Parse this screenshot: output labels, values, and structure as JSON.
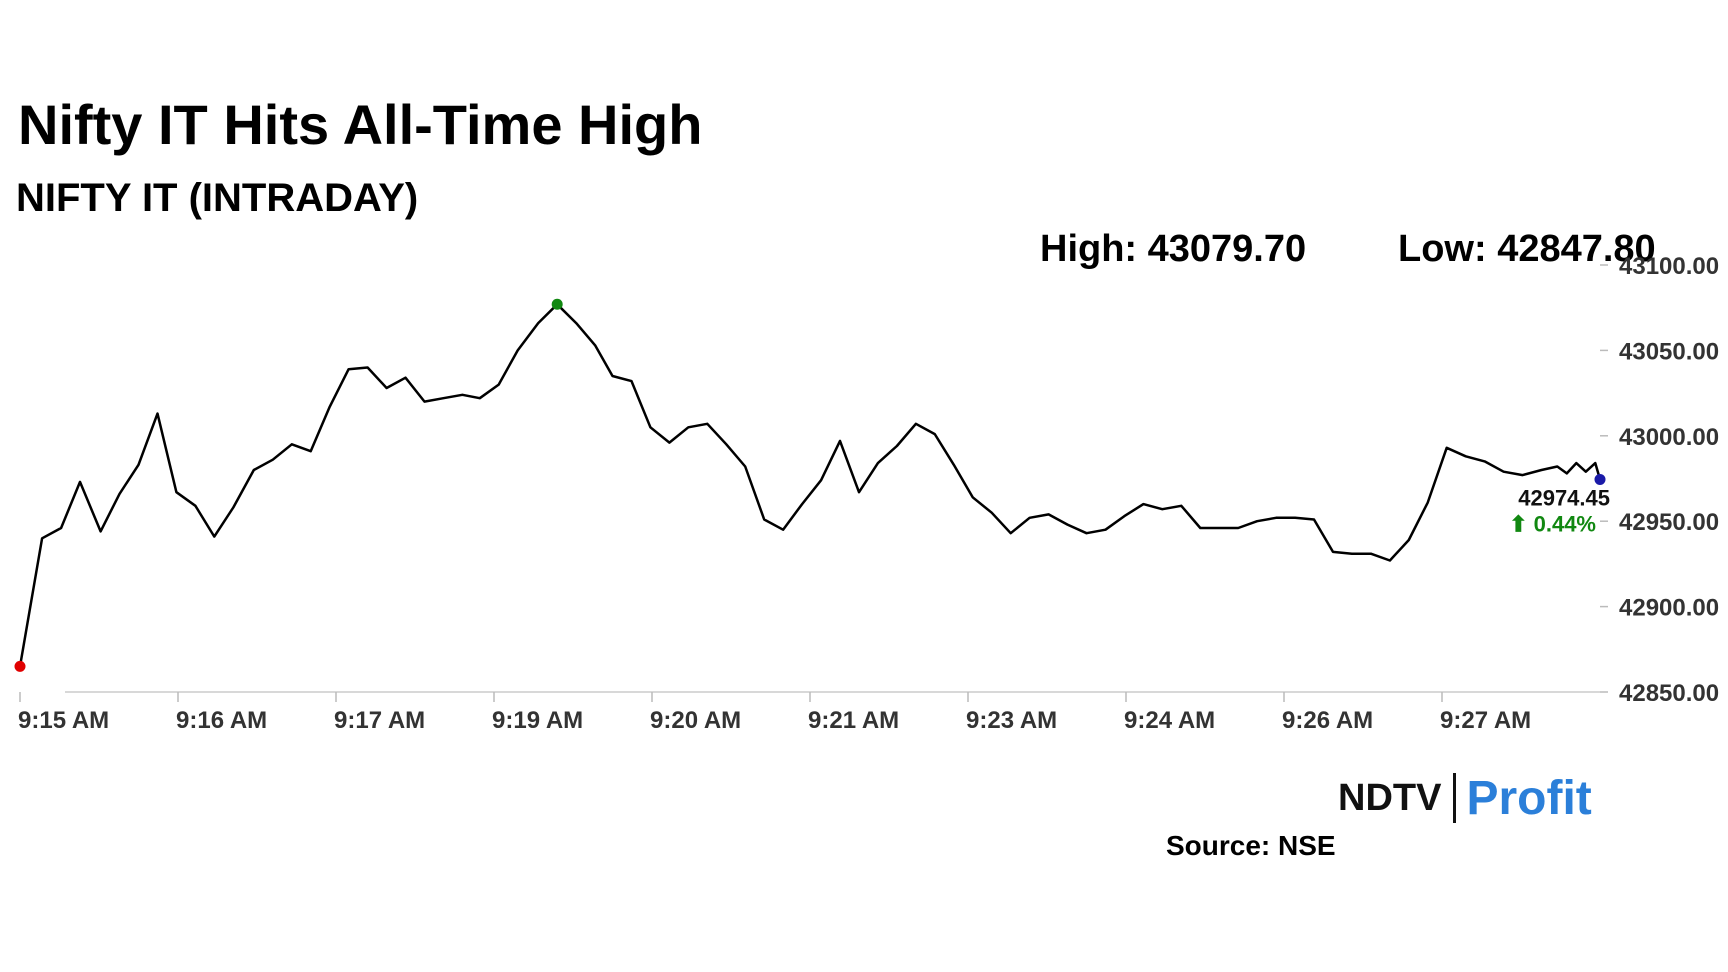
{
  "header": {
    "title": "Nifty IT Hits All-Time High",
    "subtitle": "NIFTY IT (INTRADAY)"
  },
  "stats": {
    "high_text": "High: 43079.70",
    "low_text": "Low: 42847.80"
  },
  "footer": {
    "source": "Source: NSE",
    "logo_left": "NDTV",
    "logo_right": "Profit",
    "logo_colors": {
      "ndtv": "#111111",
      "profit": "#2b7fd9",
      "dot": "#e31e24"
    }
  },
  "chart_data": {
    "type": "line",
    "title": "",
    "xlabel": "",
    "ylabel": "",
    "ylim": [
      42850,
      43100
    ],
    "y_ticks": [
      42850,
      42900,
      42950,
      43000,
      43050,
      43100
    ],
    "y_tick_labels": [
      "42850.00",
      "42900.00",
      "42950.00",
      "43000.00",
      "43050.00",
      "43100.00"
    ],
    "x_range_minutes": [
      0,
      1000
    ],
    "x_ticks": [
      {
        "t": 0,
        "label": "9:15 AM"
      },
      {
        "t": 100,
        "label": "9:16 AM"
      },
      {
        "t": 200,
        "label": "9:17 AM"
      },
      {
        "t": 300,
        "label": "9:19 AM"
      },
      {
        "t": 400,
        "label": "9:20 AM"
      },
      {
        "t": 500,
        "label": "9:21 AM"
      },
      {
        "t": 600,
        "label": "9:23 AM"
      },
      {
        "t": 700,
        "label": "9:24 AM"
      },
      {
        "t": 800,
        "label": "9:26 AM"
      },
      {
        "t": 900,
        "label": "9:27 AM"
      }
    ],
    "grid": false,
    "line_color": "#000000",
    "series": [
      {
        "x": [
          0,
          14,
          26,
          38,
          51,
          63,
          75,
          87,
          99,
          111,
          123,
          135,
          148,
          160,
          172,
          184,
          196,
          208,
          220,
          232,
          244,
          256,
          268,
          280,
          291,
          303,
          315,
          328,
          340,
          352,
          364,
          375,
          387,
          399,
          411,
          423,
          435,
          447,
          459,
          471,
          483,
          495,
          507,
          519,
          531,
          543,
          555,
          567,
          579,
          591,
          603,
          615,
          627,
          639,
          651,
          663,
          675,
          687,
          699,
          711,
          723,
          735,
          747,
          759,
          771,
          783,
          795,
          807,
          819,
          831,
          843,
          855,
          867,
          879,
          891,
          903,
          915,
          927,
          939,
          951,
          963,
          973,
          979,
          985,
          991,
          997,
          1000
        ],
        "y": [
          42865,
          42940,
          42946,
          42973,
          42944,
          42966,
          42983,
          43013,
          42967,
          42959,
          42941,
          42958,
          42980,
          42986,
          42995,
          42991,
          43017,
          43039,
          43040,
          43028,
          43034,
          43020,
          43022,
          43024,
          43022,
          43030,
          43050,
          43066,
          43077,
          43066,
          43053,
          43035,
          43032,
          43005,
          42996,
          43005,
          43007,
          42995,
          42982,
          42951,
          42945,
          42960,
          42974,
          42997,
          42967,
          42984,
          42994,
          43007,
          43001,
          42983,
          42964,
          42955,
          42943,
          42952,
          42954,
          42948,
          42943,
          42945,
          42953,
          42960,
          42957,
          42959,
          42946,
          42946,
          42946,
          42950,
          42952,
          42952,
          42951,
          42932,
          42931,
          42931,
          42927,
          42939,
          42961,
          42993,
          42988,
          42985,
          42979,
          42977,
          42980,
          42982,
          42978,
          42984,
          42979,
          42984,
          42974.45
        ]
      }
    ],
    "markers": {
      "low": {
        "t": 0,
        "value": 42865,
        "color": "#e00000"
      },
      "high": {
        "t": 340,
        "value": 43077,
        "color": "#118811"
      },
      "last": {
        "t": 1000,
        "value": 42974.45,
        "color": "#1a1aa8"
      }
    },
    "last_label": "42974.45",
    "change_label": "⬆ 0.44%",
    "change_color": "#118811"
  }
}
